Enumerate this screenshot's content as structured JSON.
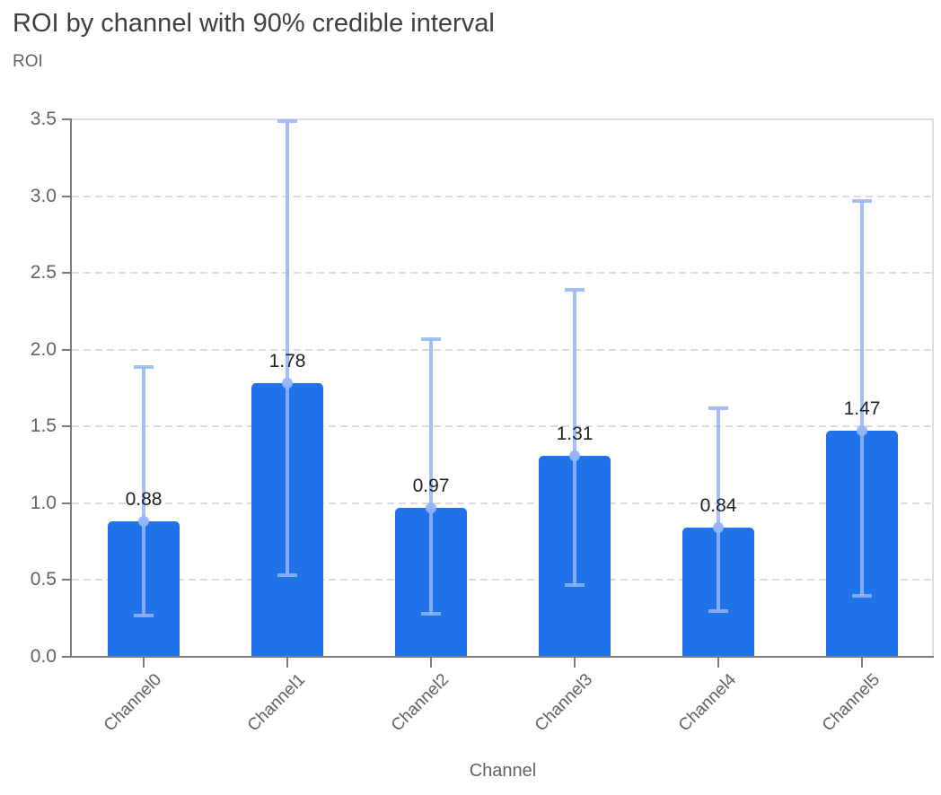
{
  "header": {
    "title": "ROI by channel with 90% credible interval",
    "y_axis_title": "ROI",
    "x_axis_title": "Channel"
  },
  "chart_data": {
    "type": "bar",
    "title": "ROI by channel with 90% credible interval",
    "xlabel": "Channel",
    "ylabel": "ROI",
    "categories": [
      "Channel0",
      "Channel1",
      "Channel2",
      "Channel3",
      "Channel4",
      "Channel5"
    ],
    "values": [
      0.88,
      1.78,
      0.97,
      1.31,
      0.84,
      1.47
    ],
    "error_low": [
      0.27,
      0.53,
      0.28,
      0.47,
      0.3,
      0.4
    ],
    "error_high": [
      1.89,
      3.49,
      2.07,
      2.39,
      1.62,
      2.97
    ],
    "error_meaning": "90% credible interval",
    "value_labels": [
      "0.88",
      "1.78",
      "0.97",
      "1.31",
      "0.84",
      "1.47"
    ],
    "y_ticks": [
      "0.0",
      "0.5",
      "1.0",
      "1.5",
      "2.0",
      "2.5",
      "3.0",
      "3.5"
    ],
    "ylim": [
      0,
      3.5
    ],
    "grid": "horizontal-dashed",
    "legend": "none",
    "colors": {
      "bar": "#1f72e8",
      "error_bar": "#9bb9f7",
      "mean_dot": "#9bb9f7",
      "gridline": "#dadce0",
      "axis": "#767b81",
      "title_text": "#3c4043",
      "axis_text": "#5f6368",
      "value_text": "#1f2023"
    }
  }
}
